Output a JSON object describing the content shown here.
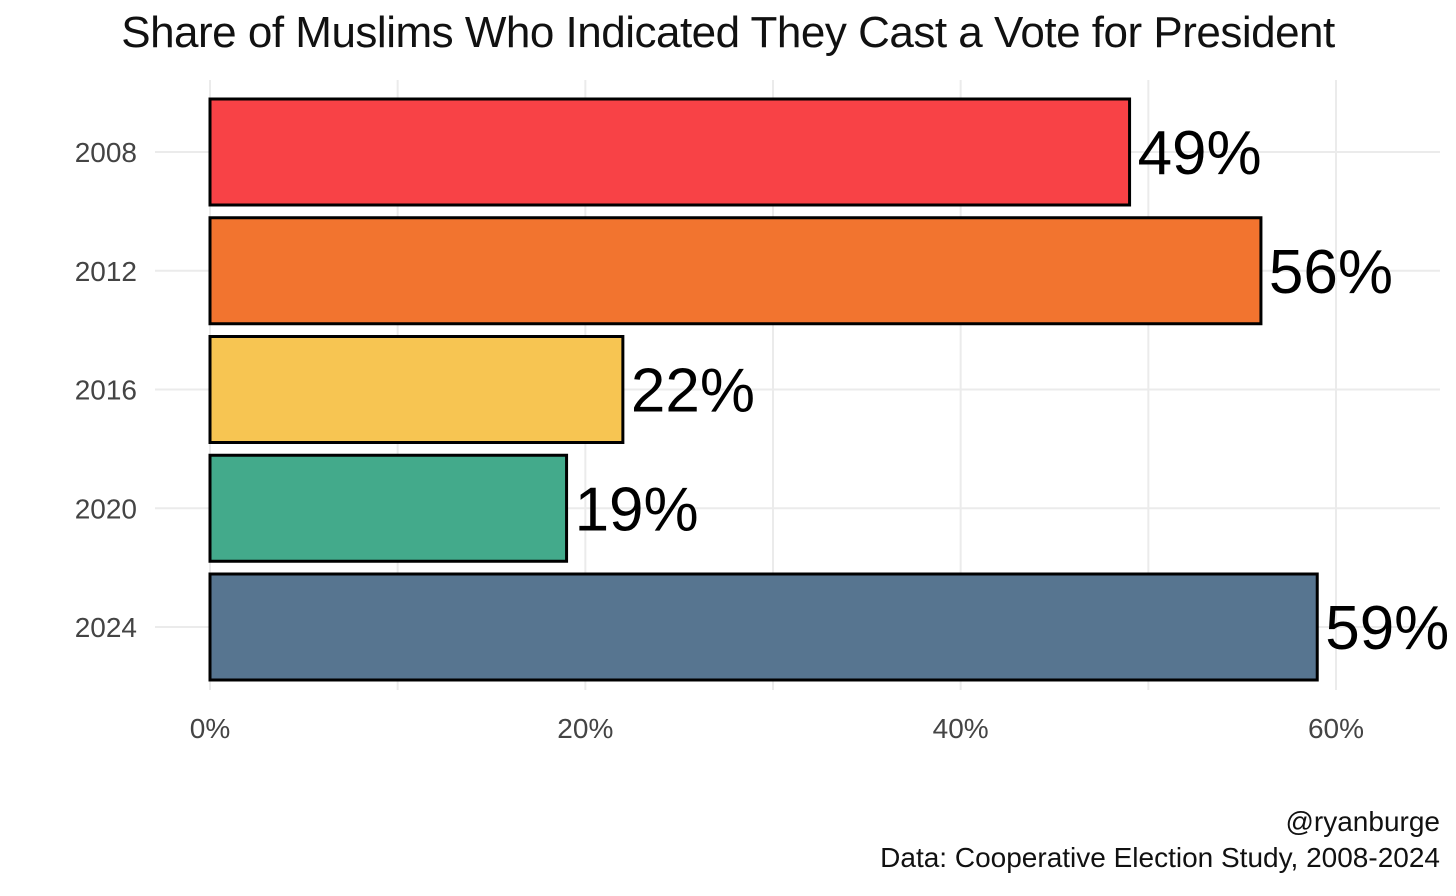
{
  "chart_data": {
    "type": "bar",
    "orientation": "horizontal",
    "title": "Share of Muslims Who Indicated They Cast a Vote for President",
    "categories": [
      "2008",
      "2012",
      "2016",
      "2020",
      "2024"
    ],
    "values": [
      0.49,
      0.56,
      0.22,
      0.19,
      0.59
    ],
    "data_labels": [
      "49%",
      "56%",
      "22%",
      "19%",
      "59%"
    ],
    "colors": [
      "#f84246",
      "#f2742f",
      "#f7c552",
      "#43aa8b",
      "#577590"
    ],
    "xlim": [
      0,
      0.6
    ],
    "x_ticks": [
      0,
      0.2,
      0.4,
      0.6
    ],
    "x_tick_labels": [
      "0%",
      "20%",
      "40%",
      "60%"
    ],
    "xlabel": "",
    "ylabel": "",
    "grid": true
  },
  "captions": {
    "handle": "@ryanburge",
    "source": "Data: Cooperative Election Study, 2008-2024"
  }
}
